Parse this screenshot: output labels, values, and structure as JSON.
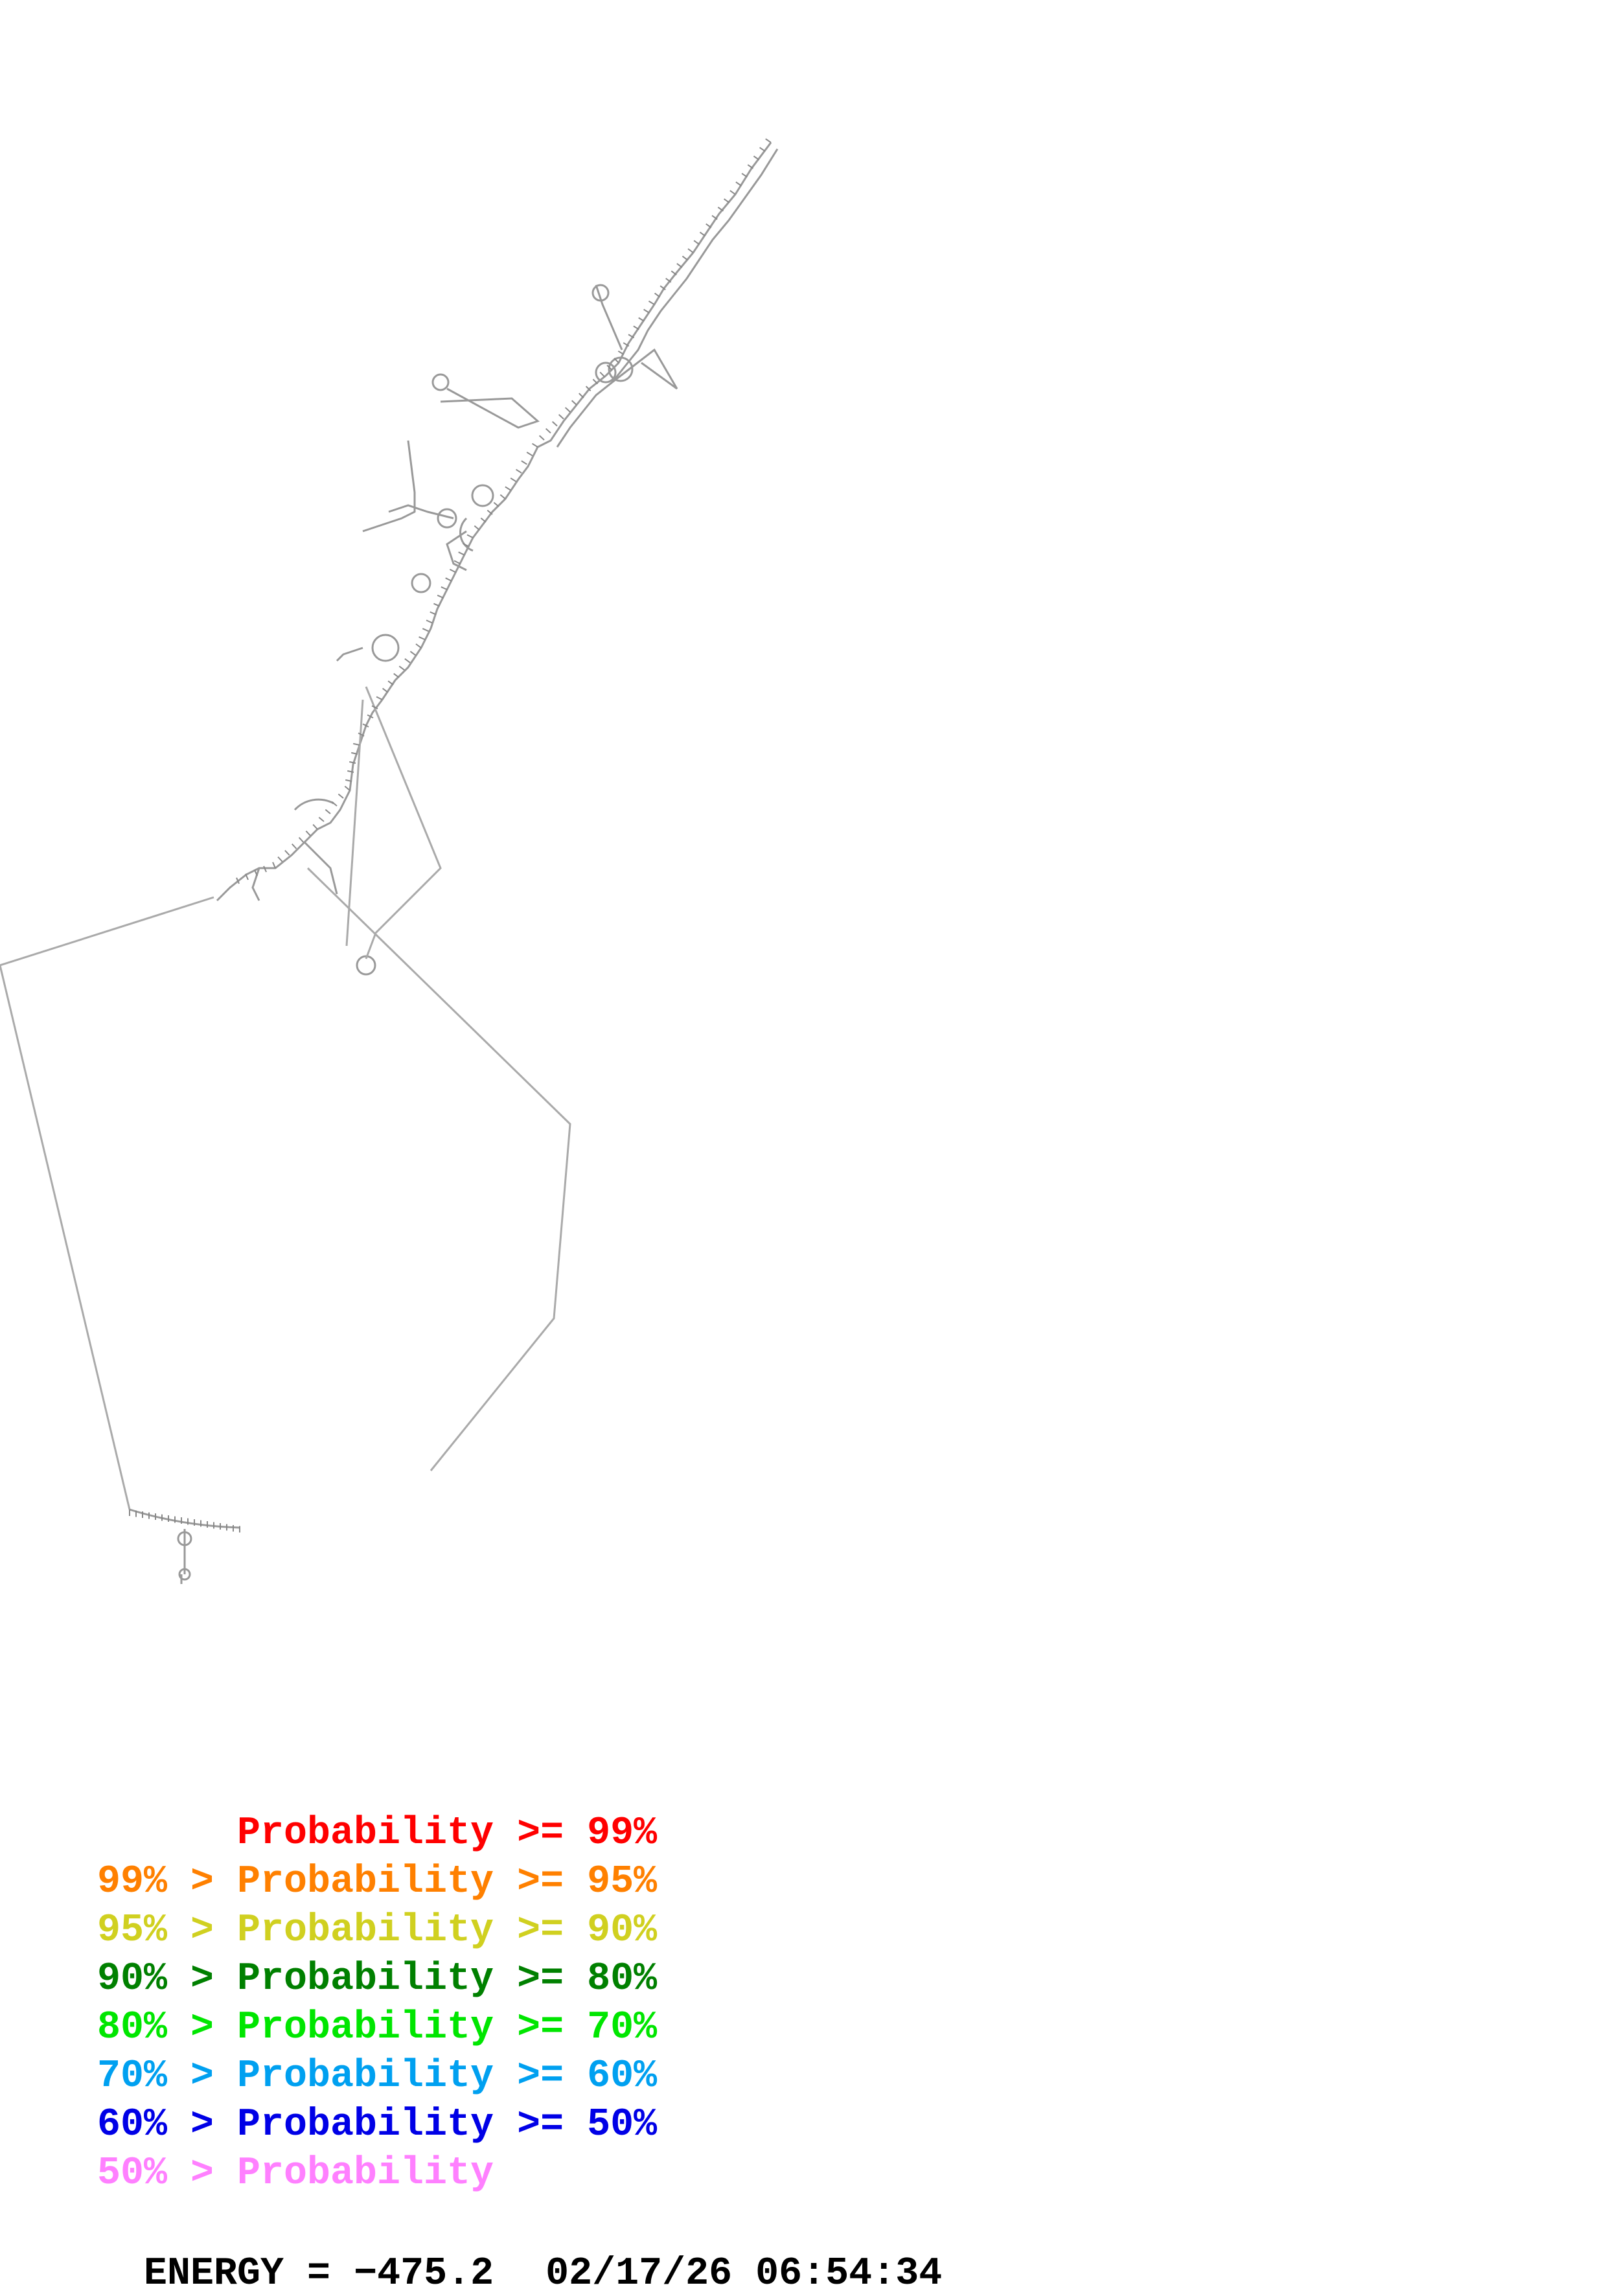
{
  "legend": [
    {
      "prefix": "",
      "label": "Probability >= 99%",
      "color": "#ff0000"
    },
    {
      "prefix": "99% > ",
      "label": "Probability >= 95%",
      "color": "#ff8000"
    },
    {
      "prefix": "95% > ",
      "label": "Probability >= 90%",
      "color": "#d0d020"
    },
    {
      "prefix": "90% > ",
      "label": "Probability >= 80%",
      "color": "#008000"
    },
    {
      "prefix": "80% > ",
      "label": "Probability >= 70%",
      "color": "#00e600"
    },
    {
      "prefix": "70% > ",
      "label": "Probability >= 60%",
      "color": "#00a0f0"
    },
    {
      "prefix": "60% > ",
      "label": "Probability >= 50%",
      "color": "#0000e6"
    },
    {
      "prefix": "50% > ",
      "label": "Probability",
      "color": "#ff80ff"
    }
  ],
  "energy": {
    "text": "ENERGY = −475.2",
    "timestamp": "02/17/26 06:54:34"
  },
  "colors": {
    "backbone": "#999999",
    "pair": "#888888"
  }
}
